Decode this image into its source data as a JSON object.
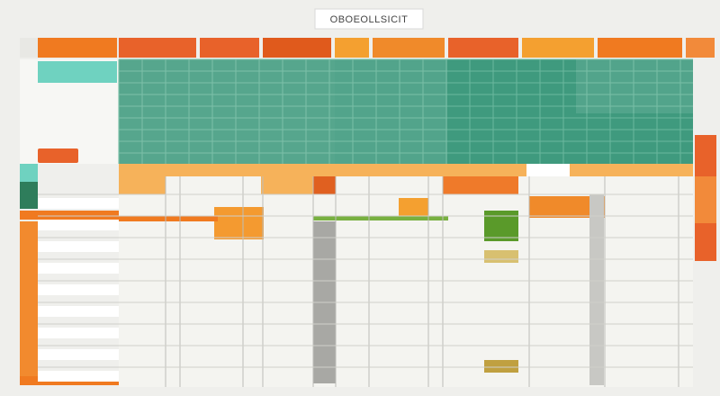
{
  "header": {
    "title": "OBOEOLLSICIT"
  }
}
